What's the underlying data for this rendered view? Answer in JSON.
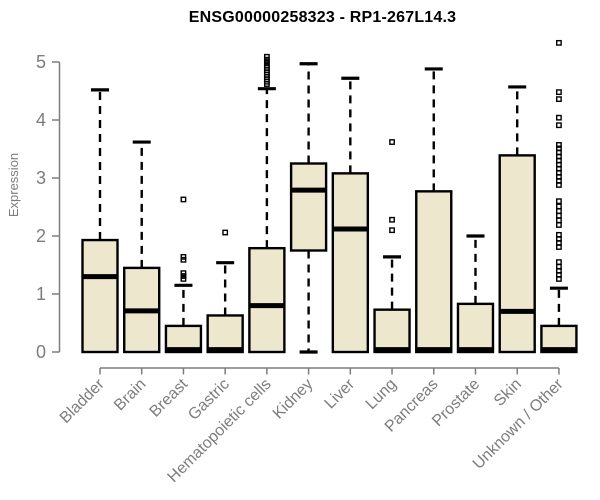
{
  "chart_data": {
    "type": "boxplot",
    "title": "ENSG00000258323 - RP1-267L14.3",
    "ylabel": "Expression",
    "xlabel": "",
    "ylim": [
      0,
      5
    ],
    "yticks": [
      0,
      1,
      2,
      3,
      4,
      5
    ],
    "grid": false,
    "legend": "none",
    "categories": [
      "Bladder",
      "Brain",
      "Breast",
      "Gastric",
      "Hematopoietic cells",
      "Kidney",
      "Liver",
      "Lung",
      "Pancreas",
      "Prostate",
      "Skin",
      "Unknown / Other"
    ],
    "boxes": [
      {
        "category": "Bladder",
        "whisker_low": 0,
        "q1": 0,
        "median": 1.3,
        "q3": 1.93,
        "whisker_high": 4.52,
        "outliers": []
      },
      {
        "category": "Brain",
        "whisker_low": 0,
        "q1": 0,
        "median": 0.71,
        "q3": 1.45,
        "whisker_high": 3.62,
        "outliers": []
      },
      {
        "category": "Breast",
        "whisker_low": 0,
        "q1": 0,
        "median": 0.04,
        "q3": 0.45,
        "whisker_high": 1.15,
        "outliers": [
          1.26,
          1.31,
          1.36,
          1.59,
          1.64,
          2.63
        ]
      },
      {
        "category": "Gastric",
        "whisker_low": 0,
        "q1": 0,
        "median": 0.04,
        "q3": 0.63,
        "whisker_high": 1.54,
        "outliers": [
          2.06
        ]
      },
      {
        "category": "Hematopoietic cells",
        "whisker_low": 0,
        "q1": 0,
        "median": 0.8,
        "q3": 1.79,
        "whisker_high": 4.54,
        "outliers": [
          4.62,
          4.66,
          4.7,
          4.74,
          4.78,
          4.82,
          4.86,
          4.9,
          4.94,
          4.99,
          5.04,
          5.09
        ]
      },
      {
        "category": "Kidney",
        "whisker_low": 0,
        "q1": 1.75,
        "median": 2.79,
        "q3": 3.25,
        "whisker_high": 4.97,
        "outliers": []
      },
      {
        "category": "Liver",
        "whisker_low": 0,
        "q1": 0,
        "median": 2.12,
        "q3": 3.08,
        "whisker_high": 4.72,
        "outliers": []
      },
      {
        "category": "Lung",
        "whisker_low": 0,
        "q1": 0,
        "median": 0.04,
        "q3": 0.73,
        "whisker_high": 1.64,
        "outliers": [
          2.1,
          2.28,
          3.62
        ]
      },
      {
        "category": "Pancreas",
        "whisker_low": 0,
        "q1": 0,
        "median": 0.04,
        "q3": 2.77,
        "whisker_high": 4.88,
        "outliers": []
      },
      {
        "category": "Prostate",
        "whisker_low": 0,
        "q1": 0,
        "median": 0.04,
        "q3": 0.83,
        "whisker_high": 2.0,
        "outliers": []
      },
      {
        "category": "Skin",
        "whisker_low": 0,
        "q1": 0,
        "median": 0.7,
        "q3": 3.39,
        "whisker_high": 4.57,
        "outliers": []
      },
      {
        "category": "Unknown / Other",
        "whisker_low": 0,
        "q1": 0,
        "median": 0.04,
        "q3": 0.45,
        "whisker_high": 1.1,
        "outliers": [
          1.26,
          1.33,
          1.4,
          1.47,
          1.55,
          1.81,
          1.88,
          1.95,
          2.02,
          2.19,
          2.27,
          2.35,
          2.43,
          2.51,
          2.6,
          2.88,
          2.95,
          3.02,
          3.09,
          3.16,
          3.23,
          3.3,
          3.37,
          3.44,
          3.51,
          3.57,
          3.91,
          4.04,
          4.36,
          4.48,
          5.33
        ]
      }
    ],
    "colors": {
      "box_fill": "#EDE8CD",
      "box_border": "#000000",
      "median": "#000000",
      "whisker": "#000000",
      "outlier": "#000000",
      "axis": "#7d7d7d",
      "title": "#000000",
      "background": "#ffffff"
    }
  }
}
